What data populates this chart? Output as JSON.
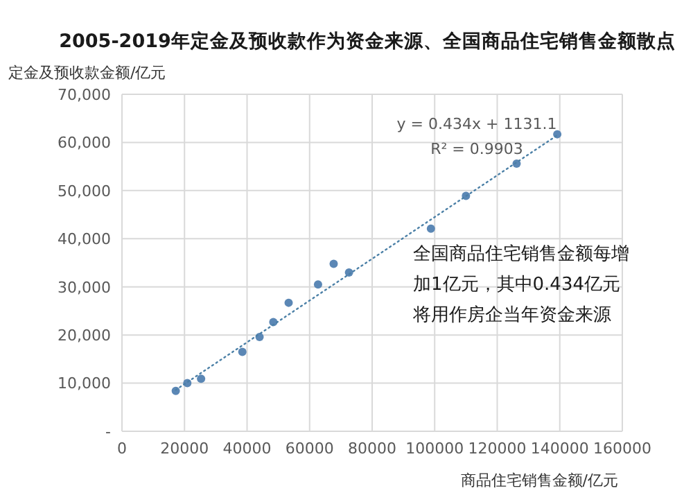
{
  "chart_data": {
    "type": "scatter",
    "title": "2005-2019年定金及预收款作为资金来源、全国商品住宅销售金额散点",
    "ylabel": "定金及预收款金额/亿元",
    "xlabel": "商品住宅销售金额/亿元",
    "xlim": [
      0,
      160000
    ],
    "xticks": [
      0,
      20000,
      40000,
      60000,
      80000,
      100000,
      120000,
      140000,
      160000
    ],
    "ylim": [
      0,
      70000
    ],
    "yticks": [
      {
        "value": 0,
        "label": "-"
      },
      {
        "value": 10000,
        "label": "10,000"
      },
      {
        "value": 20000,
        "label": "20,000"
      },
      {
        "value": 30000,
        "label": "30,000"
      },
      {
        "value": 40000,
        "label": "40,000"
      },
      {
        "value": 50000,
        "label": "50,000"
      },
      {
        "value": 60000,
        "label": "60,000"
      },
      {
        "value": 70000,
        "label": "70,000"
      }
    ],
    "grid": true,
    "legend": false,
    "marker": "circle",
    "series": [
      {
        "type": "scatter",
        "color": "#5b87b5",
        "x": [
          17200,
          20900,
          25300,
          38500,
          44000,
          48400,
          53300,
          62700,
          67700,
          72600,
          98800,
          110000,
          126200,
          139200
        ],
        "values": [
          8400,
          10000,
          10900,
          16500,
          19600,
          22700,
          26700,
          30500,
          34800,
          33000,
          42100,
          48900,
          55600,
          61700
        ]
      },
      {
        "type": "line",
        "color": "#4a7fa6",
        "line_style": "dotted",
        "marker": "none",
        "x": [
          17200,
          139200
        ],
        "values": [
          8600,
          61500
        ]
      }
    ],
    "annotations": [
      "y = 0.434x + 1131.1",
      "R² = 0.9903",
      "全国商品住宅销售金额每增",
      "加1亿元，其中0.434亿元",
      "将用作房企当年资金来源"
    ]
  }
}
